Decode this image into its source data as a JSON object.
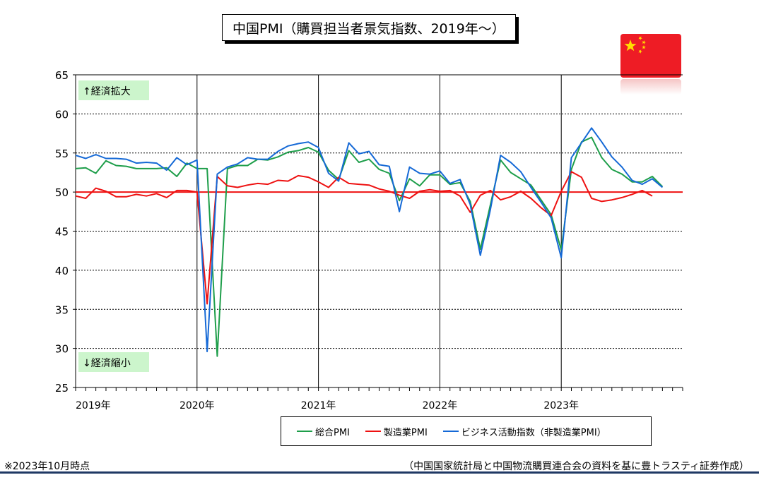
{
  "title": "中国PMI（購買担当者景気指数、2019年～）",
  "flag": {
    "icon": "china-flag-icon",
    "red": "#ee1c25",
    "star": "#ffde00"
  },
  "chart_data": {
    "type": "line",
    "ylim": [
      25,
      65
    ],
    "yticks": [
      "25",
      "30",
      "35",
      "40",
      "45",
      "50",
      "55",
      "60",
      "65"
    ],
    "ytick_values": [
      25,
      30,
      35,
      40,
      45,
      50,
      55,
      60,
      65
    ],
    "year_labels": [
      "2019年",
      "2020年",
      "2021年",
      "2022年",
      "2023年"
    ],
    "months_count": 61,
    "reference_line": {
      "value": 50,
      "color": "#ee1111"
    },
    "annotations": {
      "upper": "↑経済拡大",
      "lower": "↓経済縮小",
      "box_color": "#ccf5cc"
    },
    "grid": true,
    "legend_position": "bottom",
    "series": [
      {
        "name": "総合PMI",
        "color": "#1e9e4a",
        "values": [
          53.0,
          53.1,
          52.4,
          54.0,
          53.4,
          53.3,
          53.0,
          53.0,
          53.0,
          53.1,
          52.0,
          53.7,
          53.0,
          53.0,
          29.0,
          53.0,
          53.4,
          53.4,
          54.2,
          54.1,
          54.5,
          55.1,
          55.3,
          55.7,
          55.1,
          52.8,
          51.6,
          55.3,
          53.8,
          54.2,
          52.9,
          52.4,
          48.9,
          51.7,
          50.8,
          52.2,
          52.2,
          51.0,
          51.2,
          48.8,
          42.7,
          48.4,
          54.1,
          52.5,
          51.7,
          50.9,
          49.0,
          47.1,
          42.6,
          52.9,
          56.4,
          57.0,
          54.4,
          52.9,
          52.3,
          51.3,
          51.3,
          52.0,
          50.7
        ]
      },
      {
        "name": "製造業PMI",
        "color": "#ee1111",
        "values": [
          49.5,
          49.2,
          50.5,
          50.1,
          49.4,
          49.4,
          49.7,
          49.5,
          49.8,
          49.3,
          50.2,
          50.2,
          50.0,
          35.7,
          52.0,
          50.8,
          50.6,
          50.9,
          51.1,
          51.0,
          51.5,
          51.4,
          52.1,
          51.9,
          51.3,
          50.6,
          51.9,
          51.1,
          51.0,
          50.9,
          50.4,
          50.1,
          49.6,
          49.2,
          50.1,
          50.3,
          50.1,
          50.2,
          49.5,
          47.4,
          49.6,
          50.2,
          49.0,
          49.4,
          50.1,
          49.2,
          48.0,
          47.0,
          50.1,
          52.6,
          51.9,
          49.2,
          48.8,
          49.0,
          49.3,
          49.7,
          50.2,
          49.5
        ]
      },
      {
        "name": "ビジネス活動指数（非製造業PMI）",
        "color": "#1569d6",
        "values": [
          54.7,
          54.3,
          54.8,
          54.3,
          54.3,
          54.2,
          53.7,
          53.8,
          53.7,
          52.8,
          54.4,
          53.5,
          54.1,
          29.6,
          52.3,
          53.2,
          53.6,
          54.4,
          54.2,
          54.2,
          55.2,
          55.9,
          56.2,
          56.4,
          55.7,
          52.4,
          51.4,
          56.3,
          54.9,
          55.2,
          53.5,
          53.3,
          47.5,
          53.2,
          52.4,
          52.3,
          52.7,
          51.1,
          51.6,
          48.4,
          41.9,
          47.8,
          54.7,
          53.8,
          52.6,
          50.6,
          48.7,
          46.7,
          41.6,
          54.4,
          56.3,
          58.2,
          56.4,
          54.5,
          53.2,
          51.5,
          51.0,
          51.7,
          50.6
        ]
      }
    ]
  },
  "legend": [
    {
      "label": "総合PMI",
      "color": "#1e9e4a"
    },
    {
      "label": "製造業PMI",
      "color": "#ee1111"
    },
    {
      "label": "ビジネス活動指数（非製造業PMI）",
      "color": "#1569d6"
    }
  ],
  "footnote_left": "※2023年10月時点",
  "footnote_right": "（中国国家統計局と中国物流購買連合会の資料を基に豊トラスティ証券作成）"
}
